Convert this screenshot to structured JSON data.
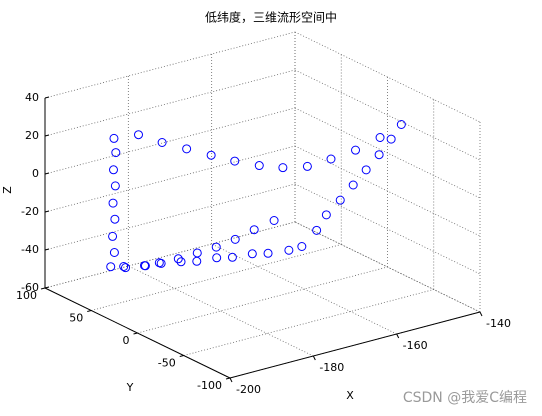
{
  "chart_data": {
    "type": "scatter3d",
    "title": "低纬度，三维流形空间中",
    "xlabel": "X",
    "ylabel": "Y",
    "zlabel": "Z",
    "xlim": [
      -200,
      -140
    ],
    "xticks": [
      -200,
      -180,
      -160,
      -140
    ],
    "ylim": [
      -100,
      100
    ],
    "yticks": [
      -100,
      -50,
      0,
      50,
      100
    ],
    "zlim": [
      -60,
      40
    ],
    "zticks": [
      -60,
      -40,
      -20,
      0,
      20,
      40
    ],
    "grid": true,
    "series": [
      {
        "color": "#0000ff",
        "x": [
          -182,
          -179,
          -176,
          -173,
          -170,
          -167,
          -164,
          -161,
          -158,
          -155,
          -152,
          -150,
          -152,
          -154,
          -156,
          -158,
          -160,
          -162,
          -163,
          -165,
          -167,
          -170,
          -172,
          -175,
          -177,
          -180,
          -182,
          -185,
          -187,
          -190,
          -190,
          -190,
          -189,
          -189,
          -188,
          -188,
          -187,
          -187,
          -186,
          -184,
          -181,
          -179,
          -176,
          -173,
          -170,
          -167,
          -164,
          -161
        ],
        "y": [
          80,
          68,
          55,
          42,
          30,
          17,
          5,
          -8,
          -20,
          -33,
          -46,
          -60,
          -58,
          -54,
          -49,
          -44,
          -39,
          -33,
          -27,
          -20,
          -15,
          -6,
          2,
          10,
          18,
          26,
          34,
          42,
          50,
          60,
          70,
          72,
          74,
          76,
          78,
          80,
          82,
          84,
          92,
          85,
          78,
          71,
          64,
          57,
          50,
          43,
          36,
          28
        ],
        "z": [
          15,
          12,
          10,
          8,
          6,
          5,
          5,
          7,
          12,
          18,
          26,
          35,
          28,
          20,
          12,
          4,
          -4,
          -12,
          -21,
          -30,
          -32,
          -34,
          -35,
          -37,
          -38,
          -40,
          -41,
          -42,
          -44,
          -45,
          -40,
          -32,
          -24,
          -16,
          -8,
          0,
          8,
          15,
          -55,
          -55,
          -54,
          -52,
          -50,
          -47,
          -44,
          -40,
          -35,
          -30
        ]
      }
    ],
    "watermark": "CSDN @我爱C编程"
  }
}
